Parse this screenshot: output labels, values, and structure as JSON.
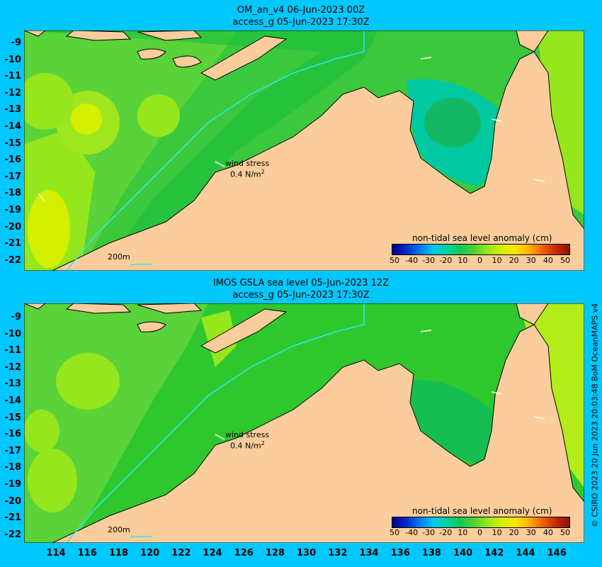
{
  "panels": [
    {
      "title_line1": "OM_an_v4  06-Jun-2023 00Z",
      "title_line2": "access_g 05-Jun-2023 17:30Z",
      "wind_stress_label": "wind stress",
      "wind_stress_value": "0.4 N/m",
      "wind_stress_sup": "2",
      "depth_contour_label": "200m",
      "legend_title": "non-tidal sea level anomaly (cm)"
    },
    {
      "title_line1": "IMOS GSLA sea level  05-Jun-2023 12Z",
      "title_line2": "access_g 05-Jun-2023 17:30Z",
      "wind_stress_label": "wind stress",
      "wind_stress_value": "0.4 N/m",
      "wind_stress_sup": "2",
      "depth_contour_label": "200m",
      "legend_title": "non-tidal sea level anomaly (cm)"
    }
  ],
  "latitude_labels": [
    "-9",
    "-10",
    "-11",
    "-12",
    "-13",
    "-14",
    "-15",
    "-16",
    "-17",
    "-18",
    "-19",
    "-20",
    "-21",
    "-22"
  ],
  "longitude_labels": [
    "114",
    "116",
    "118",
    "120",
    "122",
    "124",
    "126",
    "128",
    "130",
    "132",
    "134",
    "136",
    "138",
    "140",
    "142",
    "144",
    "146"
  ],
  "colorbar": {
    "ticks": [
      "50",
      "-40",
      "-30",
      "-20",
      "10",
      "0",
      "10",
      "20",
      "30",
      "40",
      "50"
    ],
    "colors": [
      "#00008c",
      "#0028c8",
      "#0078f0",
      "#00c8f0",
      "#00d2a0",
      "#14c850",
      "#50d232",
      "#96e61e",
      "#d2f000",
      "#fae600",
      "#ffb400",
      "#f06400",
      "#c82800",
      "#8c1400"
    ]
  },
  "colors": {
    "background": "#00c8ff",
    "land": "#fbcd9c",
    "ocean_base": "#2ec82e",
    "contour_200m": "#30e8e8"
  },
  "credit": "© CSIRO 2023   20 Jun 2023 20:03:48 BoM OceanMAPS v4"
}
